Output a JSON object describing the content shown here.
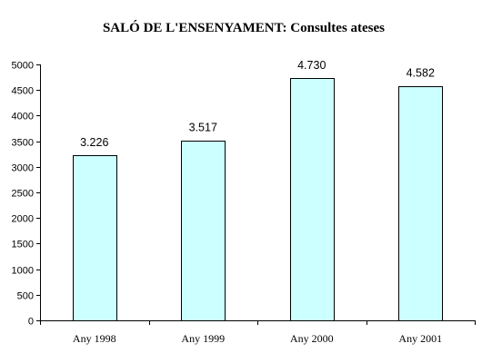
{
  "chart_data": {
    "type": "bar",
    "title": "SALÓ DE L'ENSENYAMENT: Consultes ateses",
    "xlabel": "",
    "ylabel": "",
    "categories": [
      "Any 1998",
      "Any 1999",
      "Any 2000",
      "Any 2001"
    ],
    "values": [
      3226,
      3517,
      4730,
      4582
    ],
    "value_labels": [
      "3.226",
      "3.517",
      "4.730",
      "4.582"
    ],
    "ylim": [
      0,
      5000
    ],
    "yticks": [
      0,
      500,
      1000,
      1500,
      2000,
      2500,
      3000,
      3500,
      4000,
      4500,
      5000
    ],
    "ytick_labels": [
      "0",
      "500",
      "1000",
      "1500",
      "2000",
      "2500",
      "3000",
      "3500",
      "4000",
      "4500",
      "5000"
    ],
    "grid": false,
    "legend": "none",
    "colors": {
      "bar_fill": "#ccffff",
      "bar_stroke": "#000000",
      "axis": "#000000",
      "background": "#ffffff"
    }
  }
}
